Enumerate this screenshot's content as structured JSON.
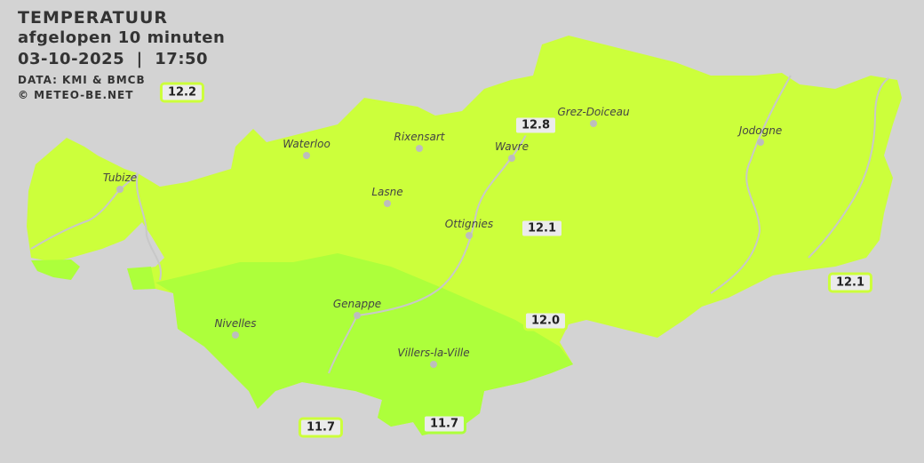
{
  "header": {
    "title": "TEMPERATUUR",
    "subtitle": "afgelopen 10 minuten",
    "datetime": "03-10-2025  |  17:50",
    "source": "DATA: KMI & BMCB",
    "copyright": "© METEO-BE.NET"
  },
  "colors": {
    "background": "#d3d3d3",
    "zone_12": "#ccff3b",
    "zone_11_5": "#adff3b",
    "label_bg": "#ebebeb",
    "river": "#c8c8c8"
  },
  "cities": [
    {
      "name": "Tubize"
    },
    {
      "name": "Waterloo"
    },
    {
      "name": "Rixensart"
    },
    {
      "name": "Wavre"
    },
    {
      "name": "Grez-Doiceau"
    },
    {
      "name": "Jodogne"
    },
    {
      "name": "Lasne"
    },
    {
      "name": "Ottignies"
    },
    {
      "name": "Genappe"
    },
    {
      "name": "Nivelles"
    },
    {
      "name": "Villers-la-Ville"
    }
  ],
  "stations": [
    {
      "value": "12.2",
      "zone": "zone_12"
    },
    {
      "value": "12.8",
      "zone": "zone_12"
    },
    {
      "value": "12.1",
      "zone": "zone_12"
    },
    {
      "value": "12.1",
      "zone": "zone_12"
    },
    {
      "value": "12.0",
      "zone": "zone_12"
    },
    {
      "value": "11.7",
      "zone": "zone_12"
    },
    {
      "value": "11.7",
      "zone": "zone_11_5"
    }
  ]
}
